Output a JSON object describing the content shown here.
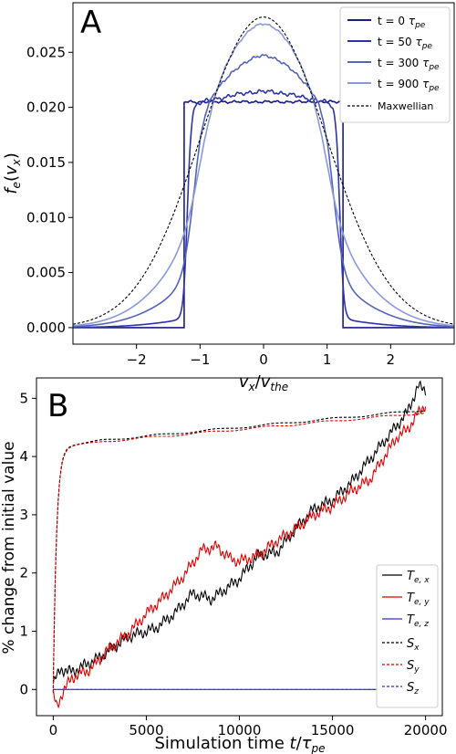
{
  "chart_data": [
    {
      "type": "line",
      "panel_label": "A",
      "xlabel_parts": {
        "v": "v",
        "vsub": "x",
        "slash": "/",
        "vv": "v",
        "vvsub": "the"
      },
      "ylabel_parts": {
        "f": "f",
        "fsub": "e",
        "open": "(",
        "v": "v",
        "vsub": "x",
        "close": ")"
      },
      "xlim": [
        -3.0,
        3.0
      ],
      "ylim": [
        -0.0015,
        0.0295
      ],
      "xticks": [
        -2,
        -1,
        0,
        1,
        2
      ],
      "xtick_labels": [
        "−2",
        "−1",
        "0",
        "1",
        "2"
      ],
      "yticks": [
        0.0,
        0.005,
        0.01,
        0.015,
        0.02,
        0.025
      ],
      "ytick_labels": [
        "0.000",
        "0.005",
        "0.010",
        "0.015",
        "0.020",
        "0.025"
      ],
      "legend_position": "top-right",
      "series": [
        {
          "name": "t = 0 τpe",
          "label_main": "t = 0 ",
          "label_sym": "τ",
          "label_sub": "pe",
          "color": "#1a1a8c",
          "dash": "solid",
          "peak": 0.0205,
          "kind": "flat",
          "width": 1.25,
          "blur": 0.0
        },
        {
          "name": "t = 50 τpe",
          "label_main": "t = 50 ",
          "label_sym": "τ",
          "label_sub": "pe",
          "color": "#2e33a8",
          "dash": "solid",
          "peak": 0.0211,
          "kind": "mix",
          "width": 1.2,
          "blur": 0.08
        },
        {
          "name": "t = 300 τpe",
          "label_main": "t = 300 ",
          "label_sym": "τ",
          "label_sub": "pe",
          "color": "#5563bf",
          "dash": "solid",
          "peak": 0.0235,
          "kind": "mix",
          "width": 1.1,
          "blur": 0.35
        },
        {
          "name": "t = 900 τpe",
          "label_main": "t = 900 ",
          "label_sym": "τ",
          "label_sub": "pe",
          "color": "#8a9ad8",
          "dash": "solid",
          "peak": 0.0262,
          "kind": "mix",
          "width": 1.0,
          "blur": 0.6
        },
        {
          "name": "Maxwellian",
          "label_main": "Maxwellian",
          "label_sym": "",
          "label_sub": "",
          "color": "#000000",
          "dash": "dashed",
          "peak": 0.0282,
          "kind": "gauss",
          "width": 1.0,
          "blur": 1.0
        }
      ]
    },
    {
      "type": "line",
      "panel_label": "B",
      "xlabel_parts": {
        "text": "Simulation time ",
        "t": "t",
        "slash": "/",
        "tau": "τ",
        "tausub": "pe"
      },
      "ylabel": "% change from initial value",
      "xlim": [
        -900,
        20900
      ],
      "ylim": [
        -0.45,
        5.35
      ],
      "xticks": [
        0,
        5000,
        10000,
        15000,
        20000
      ],
      "xtick_labels": [
        "0",
        "5000",
        "10000",
        "15000",
        "20000"
      ],
      "yticks": [
        0,
        1,
        2,
        3,
        4,
        5
      ],
      "ytick_labels": [
        "0",
        "1",
        "2",
        "3",
        "4",
        "5"
      ],
      "legend_position": "lower-right",
      "series": [
        {
          "name": "Te,x",
          "label_main": "T",
          "label_sub": "e, x",
          "color": "#000000",
          "dash": "solid",
          "kind": "linear",
          "points": [
            [
              0,
              0.1
            ],
            [
              400,
              0.35
            ],
            [
              1000,
              0.3
            ],
            [
              2500,
              0.55
            ],
            [
              4000,
              0.9
            ],
            [
              5500,
              1.05
            ],
            [
              6500,
              1.3
            ],
            [
              7500,
              1.65
            ],
            [
              8500,
              1.55
            ],
            [
              10000,
              1.9
            ],
            [
              11000,
              2.3
            ],
            [
              12000,
              2.35
            ],
            [
              13000,
              2.75
            ],
            [
              14000,
              3.1
            ],
            [
              15000,
              3.25
            ],
            [
              16000,
              3.55
            ],
            [
              17000,
              3.95
            ],
            [
              18000,
              4.35
            ],
            [
              19000,
              4.75
            ],
            [
              19600,
              5.2
            ],
            [
              20000,
              5.15
            ]
          ]
        },
        {
          "name": "Te,y",
          "label_main": "T",
          "label_sub": "e, y",
          "color": "#dd0000",
          "dash": "solid",
          "kind": "linear",
          "points": [
            [
              0,
              -0.1
            ],
            [
              200,
              -0.3
            ],
            [
              500,
              -0.05
            ],
            [
              1000,
              0.2
            ],
            [
              2000,
              0.35
            ],
            [
              3000,
              0.7
            ],
            [
              4000,
              0.95
            ],
            [
              5000,
              1.3
            ],
            [
              6000,
              1.6
            ],
            [
              7000,
              1.95
            ],
            [
              8000,
              2.4
            ],
            [
              8800,
              2.45
            ],
            [
              9500,
              2.25
            ],
            [
              10000,
              2.2
            ],
            [
              11000,
              2.3
            ],
            [
              12000,
              2.55
            ],
            [
              13000,
              2.75
            ],
            [
              14000,
              3.0
            ],
            [
              15000,
              3.15
            ],
            [
              16000,
              3.4
            ],
            [
              17000,
              3.6
            ],
            [
              18000,
              4.1
            ],
            [
              18500,
              4.35
            ],
            [
              19000,
              4.45
            ],
            [
              19500,
              4.7
            ],
            [
              20000,
              4.9
            ]
          ]
        },
        {
          "name": "Te,z",
          "label_main": "T",
          "label_sub": "e, z",
          "color": "#3333cc",
          "dash": "solid",
          "kind": "const",
          "value": 0.0
        },
        {
          "name": "Sx",
          "label_main": "S",
          "label_sub": "x",
          "color": "#000000",
          "dash": "dashed",
          "kind": "entropy",
          "plateau": 4.2,
          "final": 4.8
        },
        {
          "name": "Sy",
          "label_main": "S",
          "label_sub": "y",
          "color": "#dd0000",
          "dash": "dashed",
          "kind": "entropy",
          "plateau": 4.18,
          "final": 4.75
        },
        {
          "name": "Sz",
          "label_main": "S",
          "label_sub": "z",
          "color": "#3333cc",
          "dash": "dashed",
          "kind": "const",
          "value": 0.0
        }
      ]
    }
  ]
}
